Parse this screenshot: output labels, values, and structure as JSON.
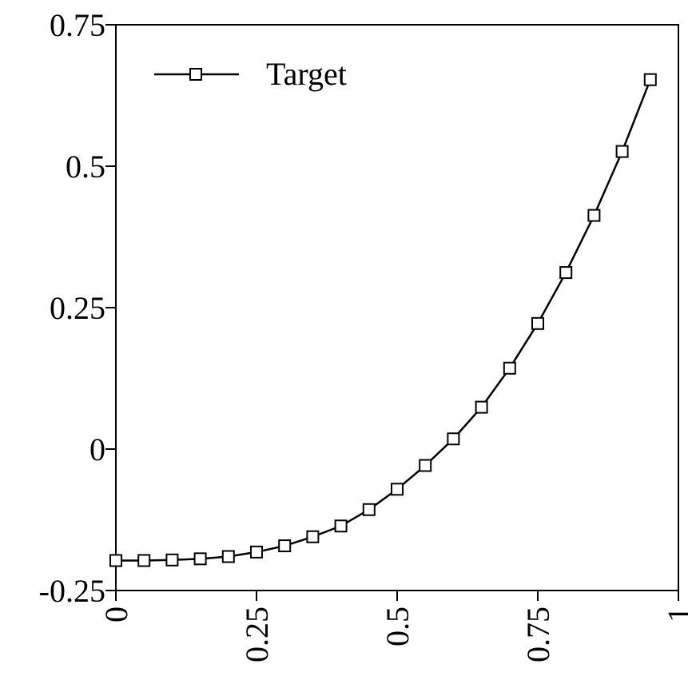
{
  "chart_data": {
    "type": "line",
    "title": "",
    "xlabel": "",
    "ylabel": "",
    "xlim": [
      0,
      1
    ],
    "ylim": [
      -0.25,
      0.75
    ],
    "grid": false,
    "legend_position": "top-left",
    "x_ticks": [
      0,
      0.25,
      0.5,
      0.75,
      1
    ],
    "x_tick_labels": [
      "0",
      "0.25",
      "0.5",
      "0.75",
      "1"
    ],
    "y_ticks": [
      -0.25,
      0,
      0.25,
      0.5,
      0.75
    ],
    "y_tick_labels": [
      "-0.25",
      "0",
      "0.25",
      "0.5",
      "0.75"
    ],
    "series": [
      {
        "name": "Target",
        "marker": "square",
        "color": "#000000",
        "x": [
          0,
          0.05,
          0.1,
          0.15,
          0.2,
          0.25,
          0.3,
          0.35,
          0.4,
          0.45,
          0.5,
          0.55,
          0.6,
          0.65,
          0.7,
          0.75,
          0.8,
          0.85,
          0.9,
          0.95
        ],
        "y": [
          -0.197,
          -0.197,
          -0.196,
          -0.194,
          -0.19,
          -0.182,
          -0.171,
          -0.155,
          -0.136,
          -0.107,
          -0.071,
          -0.029,
          0.018,
          0.074,
          0.143,
          0.222,
          0.312,
          0.413,
          0.526,
          0.653
        ]
      }
    ]
  }
}
